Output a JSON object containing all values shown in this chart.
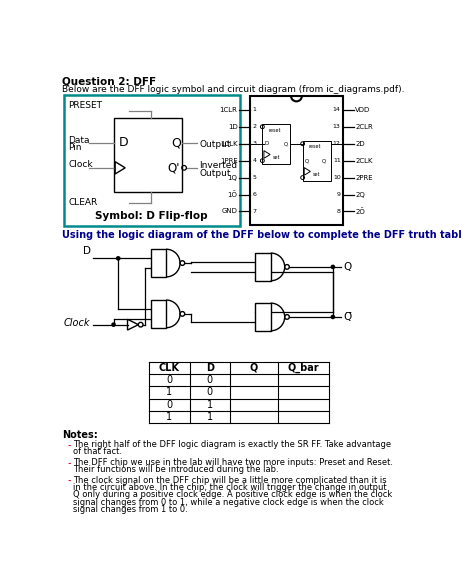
{
  "title": "Question 2: DFF",
  "subtitle": "Below are the DFF logic symbol and circuit diagram (from ic_diagrams.pdf).",
  "instruction": "Using the logic diagram of the DFF below to complete the DFF truth table.",
  "notes_title": "Notes:",
  "notes": [
    "The right half of the DFF logic diagram is exactly the SR FF. Take advantage of that fact.",
    "The DFF chip we use in the lab will have two more inputs: Preset and Reset. Their functions will be introduced during the lab.",
    "The clock signal on the DFF chip will be a little more complicated than it is in the circuit above. In the chip, the clock will trigger the change in output Q only during a positive clock edge. A positive clock edge is when the clock signal changes from 0 to 1, while a negative clock edge is when the clock signal changes from 1 to 0."
  ],
  "table": {
    "headers": [
      "CLK",
      "D",
      "Q",
      "Q_bar"
    ],
    "rows": [
      [
        "0",
        "0",
        "",
        ""
      ],
      [
        "1",
        "0",
        "",
        ""
      ],
      [
        "0",
        "1",
        "",
        ""
      ],
      [
        "1",
        "1",
        "",
        ""
      ]
    ]
  },
  "colors": {
    "title_color": "#000000",
    "subtitle_color": "#000000",
    "instruction_color": "#00008B",
    "symbol_border": "#008B8B",
    "notes_dash_color": "#CC0000"
  }
}
